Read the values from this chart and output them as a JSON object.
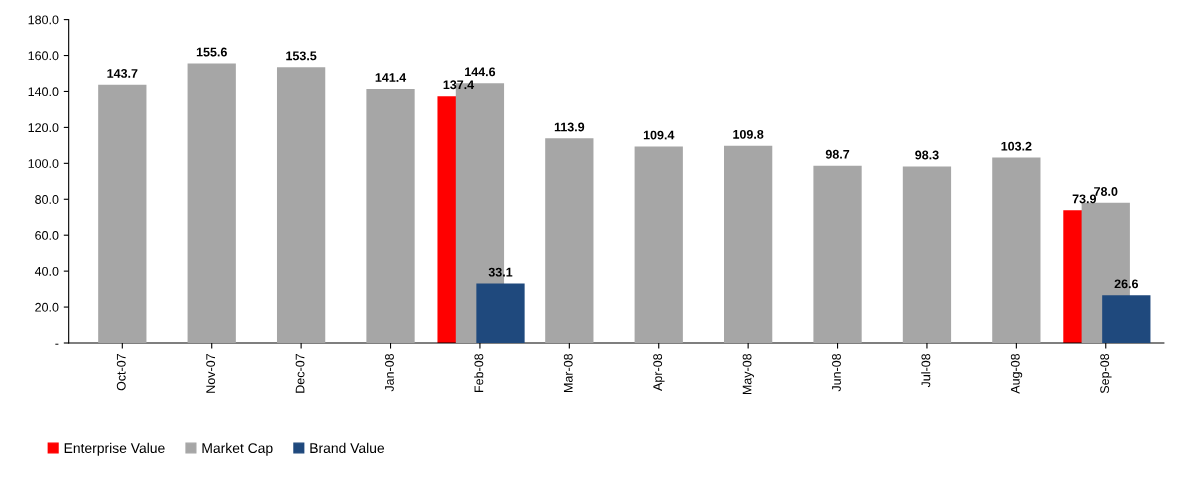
{
  "chart_data": {
    "type": "bar",
    "categories": [
      "Oct-07",
      "Nov-07",
      "Dec-07",
      "Jan-08",
      "Feb-08",
      "Mar-08",
      "Apr-08",
      "May-08",
      "Jun-08",
      "Jul-08",
      "Aug-08",
      "Sep-08"
    ],
    "series": [
      {
        "name": "Enterprise Value",
        "color": "#ff0000",
        "values": [
          null,
          null,
          null,
          null,
          137.4,
          null,
          null,
          null,
          null,
          null,
          null,
          73.9
        ]
      },
      {
        "name": "Market Cap",
        "color": "#a6a6a6",
        "values": [
          143.7,
          155.6,
          153.5,
          141.4,
          144.6,
          113.9,
          109.4,
          109.8,
          98.7,
          98.3,
          103.2,
          78.0
        ],
        "value_labels": [
          "143.7",
          "155.6",
          "153.5",
          "141.4",
          "144.6",
          "113.9",
          "109.4",
          "109.8",
          "98.7",
          "98.3",
          "103.2",
          "78.0"
        ]
      },
      {
        "name": "Brand Value",
        "color": "#1f497d",
        "values": [
          null,
          null,
          null,
          null,
          33.1,
          null,
          null,
          null,
          null,
          null,
          null,
          26.6
        ]
      }
    ],
    "ylim": [
      0,
      180
    ],
    "yticks": [
      {
        "value": 0,
        "label": "-"
      },
      {
        "value": 20,
        "label": "20.0"
      },
      {
        "value": 40,
        "label": "40.0"
      },
      {
        "value": 60,
        "label": "60.0"
      },
      {
        "value": 80,
        "label": "80.0"
      },
      {
        "value": 100,
        "label": "100.0"
      },
      {
        "value": 120,
        "label": "120.0"
      },
      {
        "value": 140,
        "label": "140.0"
      },
      {
        "value": 160,
        "label": "160.0"
      },
      {
        "value": 180,
        "label": "180.0"
      }
    ],
    "grid": false,
    "legend": "bottom left",
    "data_labels": true
  }
}
